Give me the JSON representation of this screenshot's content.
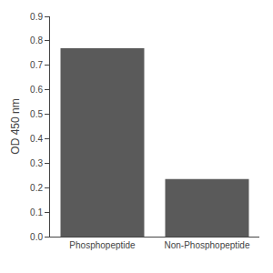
{
  "chart_data": {
    "type": "bar",
    "categories": [
      "Phosphopeptide",
      "Non-Phosphopeptide"
    ],
    "values": [
      0.77,
      0.235
    ],
    "color": "#5a5a5a",
    "ylabel": "OD 450 nm",
    "ylim": [
      0,
      0.9
    ],
    "yticks": [
      {
        "value": 0,
        "label": "0.0"
      },
      0.1,
      0.2,
      0.3,
      0.4,
      0.5,
      0.6,
      0.7,
      0.8,
      0.9
    ],
    "grid": false
  }
}
